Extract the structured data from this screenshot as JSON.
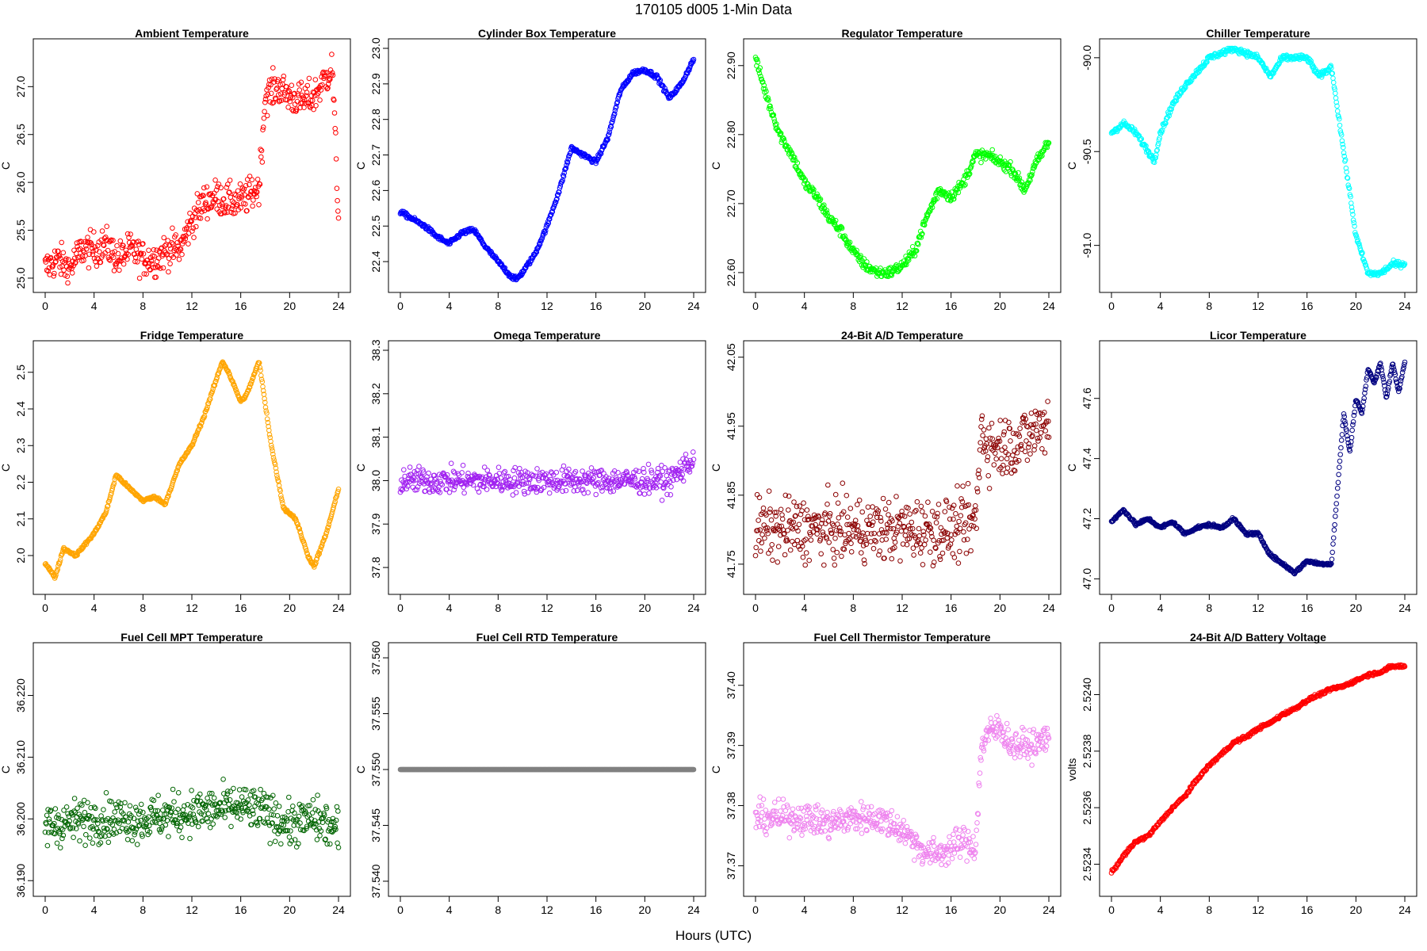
{
  "figure": {
    "title": "170105    d005    1-Min Data",
    "xlabel": "Hours (UTC)"
  },
  "chart_data": [
    {
      "type": "scatter",
      "title": "Ambient Temperature",
      "ylabel": "C",
      "xlim": [
        0,
        24
      ],
      "ylim": [
        24.95,
        27.4
      ],
      "xticks": [
        0,
        4,
        8,
        12,
        16,
        20,
        24
      ],
      "yticks": [
        25.0,
        25.5,
        26.0,
        26.5,
        27.0
      ],
      "ytick_labels": [
        "25.0",
        "25.5",
        "26.0",
        "26.5",
        "27.0"
      ],
      "color": "#ff0000",
      "x": [
        0,
        1,
        2,
        3,
        4,
        5,
        6,
        7,
        8,
        9,
        10,
        11,
        12,
        13,
        14,
        15,
        16,
        17,
        17.5,
        18,
        19,
        20,
        21,
        22,
        23,
        23.5,
        24
      ],
      "y": [
        25.1,
        25.2,
        25.1,
        25.3,
        25.3,
        25.35,
        25.2,
        25.3,
        25.2,
        25.2,
        25.3,
        25.3,
        25.6,
        25.8,
        25.85,
        25.8,
        25.8,
        25.9,
        25.95,
        26.9,
        27.0,
        26.9,
        26.85,
        26.9,
        27.1,
        27.2,
        25.6
      ],
      "noise": 0.18
    },
    {
      "type": "scatter",
      "title": "Cylinder Box Temperature",
      "ylabel": "C",
      "xlim": [
        0,
        24
      ],
      "ylim": [
        22.34,
        23.0
      ],
      "xticks": [
        0,
        4,
        8,
        12,
        16,
        20,
        24
      ],
      "yticks": [
        22.4,
        22.5,
        22.6,
        22.7,
        22.8,
        22.9,
        23.0
      ],
      "ytick_labels": [
        "22.4",
        "22.5",
        "22.6",
        "22.7",
        "22.8",
        "22.9",
        "23.0"
      ],
      "color": "#0000ff",
      "x": [
        0,
        1,
        2,
        3,
        4,
        5,
        6,
        7,
        8,
        9,
        9.5,
        10,
        11,
        12,
        13,
        14,
        15,
        16,
        17,
        18,
        19,
        20,
        21,
        22,
        23,
        24
      ],
      "y": [
        22.54,
        22.52,
        22.5,
        22.47,
        22.45,
        22.48,
        22.49,
        22.44,
        22.4,
        22.36,
        22.35,
        22.37,
        22.42,
        22.5,
        22.6,
        22.72,
        22.7,
        22.68,
        22.75,
        22.88,
        22.93,
        22.94,
        22.92,
        22.86,
        22.9,
        22.97
      ],
      "noise": 0.006
    },
    {
      "type": "scatter",
      "title": "Regulator Temperature",
      "ylabel": "C",
      "xlim": [
        0,
        24
      ],
      "ylim": [
        22.585,
        22.925
      ],
      "xticks": [
        0,
        4,
        8,
        12,
        16,
        20,
        24
      ],
      "yticks": [
        22.6,
        22.7,
        22.8,
        22.9
      ],
      "ytick_labels": [
        "22.60",
        "22.70",
        "22.80",
        "22.90"
      ],
      "color": "#00ff00",
      "x": [
        0,
        1,
        2,
        3,
        4,
        5,
        6,
        7,
        8,
        9,
        10,
        11,
        12,
        13,
        14,
        15,
        16,
        17,
        18,
        19,
        20,
        21,
        22,
        23,
        24
      ],
      "y": [
        22.91,
        22.85,
        22.8,
        22.77,
        22.73,
        22.71,
        22.68,
        22.66,
        22.63,
        22.61,
        22.6,
        22.6,
        22.61,
        22.63,
        22.68,
        22.72,
        22.71,
        22.73,
        22.77,
        22.77,
        22.76,
        22.75,
        22.72,
        22.76,
        22.79
      ],
      "noise": 0.008
    },
    {
      "type": "scatter",
      "title": "Chiller Temperature",
      "ylabel": "C",
      "xlim": [
        0,
        24
      ],
      "ylim": [
        -91.2,
        -89.95
      ],
      "xticks": [
        0,
        4,
        8,
        12,
        16,
        20,
        24
      ],
      "yticks": [
        -91.0,
        -90.5,
        -90.0
      ],
      "ytick_labels": [
        "-91.0",
        "-90.5",
        "-90.0"
      ],
      "color": "#00ffff",
      "x": [
        0,
        1,
        2,
        3,
        3.5,
        4,
        5,
        6,
        8,
        10,
        12,
        13,
        14,
        16,
        17,
        18,
        19,
        20,
        21,
        22,
        23,
        24
      ],
      "y": [
        -90.4,
        -90.35,
        -90.4,
        -90.5,
        -90.55,
        -90.4,
        -90.25,
        -90.15,
        -90.0,
        -89.95,
        -90.0,
        -90.1,
        -90.0,
        -90.0,
        -90.1,
        -90.05,
        -90.5,
        -90.95,
        -91.15,
        -91.15,
        -91.1,
        -91.1
      ],
      "noise": 0.015
    },
    {
      "type": "scatter",
      "title": "Fridge Temperature",
      "ylabel": "C",
      "xlim": [
        0,
        24
      ],
      "ylim": [
        1.92,
        2.56
      ],
      "xticks": [
        0,
        4,
        8,
        12,
        16,
        20,
        24
      ],
      "yticks": [
        2.0,
        2.1,
        2.2,
        2.3,
        2.4,
        2.5
      ],
      "ytick_labels": [
        "2.0",
        "2.1",
        "2.2",
        "2.3",
        "2.4",
        "2.5"
      ],
      "color": "#ffa500",
      "x": [
        0,
        0.8,
        1.5,
        2.5,
        4,
        5,
        5.8,
        7,
        8,
        9,
        9.8,
        11,
        12,
        13,
        14,
        14.5,
        15,
        16,
        16.5,
        17.5,
        18.5,
        19.5,
        20.5,
        21.5,
        22,
        23,
        24
      ],
      "y": [
        1.98,
        1.94,
        2.02,
        2.0,
        2.06,
        2.12,
        2.22,
        2.18,
        2.15,
        2.16,
        2.14,
        2.25,
        2.3,
        2.38,
        2.48,
        2.53,
        2.5,
        2.42,
        2.44,
        2.53,
        2.3,
        2.13,
        2.1,
        2.0,
        1.97,
        2.06,
        2.18
      ],
      "noise": 0.004
    },
    {
      "type": "scatter",
      "title": "Omega Temperature",
      "ylabel": "C",
      "xlim": [
        0,
        24
      ],
      "ylim": [
        37.76,
        38.3
      ],
      "xticks": [
        0,
        4,
        8,
        12,
        16,
        20,
        24
      ],
      "yticks": [
        37.8,
        37.9,
        38.0,
        38.1,
        38.2,
        38.3
      ],
      "ytick_labels": [
        "37.8",
        "37.9",
        "38.0",
        "38.1",
        "38.2",
        "38.3"
      ],
      "color": "#a020f0",
      "x": [
        0,
        2,
        4,
        6,
        8,
        10,
        12,
        14,
        16,
        17.5,
        18.5,
        20,
        22,
        24
      ],
      "y": [
        38.0,
        38.0,
        38.0,
        38.0,
        38.0,
        38.0,
        38.0,
        38.0,
        38.0,
        38.0,
        38.0,
        38.0,
        38.0,
        38.05
      ],
      "noise": 0.03
    },
    {
      "type": "scatter",
      "title": "24-Bit A/D Temperature",
      "ylabel": "C",
      "xlim": [
        0,
        24
      ],
      "ylim": [
        41.72,
        42.06
      ],
      "xticks": [
        0,
        4,
        8,
        12,
        16,
        20,
        24
      ],
      "yticks": [
        41.75,
        41.85,
        41.95,
        42.05
      ],
      "ytick_labels": [
        "41.75",
        "41.85",
        "41.95",
        "42.05"
      ],
      "color": "#8b0000",
      "x": [
        0,
        4,
        8,
        12,
        16,
        18,
        18.5,
        19,
        20,
        22,
        24
      ],
      "y": [
        41.8,
        41.8,
        41.8,
        41.8,
        41.8,
        41.81,
        41.95,
        41.92,
        41.92,
        41.93,
        41.96
      ],
      "noise": 0.045
    },
    {
      "type": "scatter",
      "title": "Licor Temperature",
      "ylabel": "C",
      "xlim": [
        0,
        24
      ],
      "ylim": [
        46.98,
        47.76
      ],
      "xticks": [
        0,
        4,
        8,
        12,
        16,
        20,
        24
      ],
      "yticks": [
        47.0,
        47.2,
        47.4,
        47.6
      ],
      "ytick_labels": [
        "47.0",
        "47.2",
        "47.4",
        "47.6"
      ],
      "color": "#000080",
      "x": [
        0,
        1,
        2,
        3,
        4,
        5,
        6,
        7,
        8,
        9,
        10,
        11,
        12,
        13,
        14,
        15,
        16,
        17,
        18,
        18.5,
        19,
        19.5,
        20,
        20.5,
        21,
        21.5,
        22,
        22.5,
        23,
        23.5,
        24
      ],
      "y": [
        47.19,
        47.23,
        47.18,
        47.2,
        47.17,
        47.19,
        47.15,
        47.17,
        47.18,
        47.17,
        47.2,
        47.15,
        47.15,
        47.08,
        47.05,
        47.02,
        47.06,
        47.05,
        47.05,
        47.3,
        47.55,
        47.42,
        47.6,
        47.55,
        47.7,
        47.65,
        47.72,
        47.6,
        47.72,
        47.62,
        47.72
      ],
      "noise": 0.005
    },
    {
      "type": "scatter",
      "title": "Fuel Cell MPT Temperature",
      "ylabel": "C",
      "xlim": [
        0,
        24
      ],
      "ylim": [
        36.189,
        36.227
      ],
      "xticks": [
        0,
        4,
        8,
        12,
        16,
        20,
        24
      ],
      "yticks": [
        36.19,
        36.2,
        36.21,
        36.22
      ],
      "ytick_labels": [
        "36.190",
        "36.200",
        "36.210",
        "36.220"
      ],
      "color": "#006400",
      "x": [
        0,
        4,
        8,
        12,
        16,
        18,
        20,
        22,
        24
      ],
      "y": [
        36.199,
        36.2,
        36.2,
        36.201,
        36.202,
        36.201,
        36.199,
        36.2,
        36.198
      ],
      "noise": 0.0035
    },
    {
      "type": "scatter",
      "title": "Fuel Cell RTD Temperature",
      "ylabel": "C",
      "xlim": [
        0,
        24
      ],
      "ylim": [
        37.5395,
        37.5605
      ],
      "xticks": [
        0,
        4,
        8,
        12,
        16,
        20,
        24
      ],
      "yticks": [
        37.54,
        37.545,
        37.55,
        37.555,
        37.56
      ],
      "ytick_labels": [
        "37.540",
        "37.545",
        "37.550",
        "37.555",
        "37.560"
      ],
      "color": "#808080",
      "x": [
        0,
        24
      ],
      "y": [
        37.55,
        37.55
      ],
      "noise": 0
    },
    {
      "type": "scatter",
      "title": "Fuel Cell Thermistor Temperature",
      "ylabel": "C",
      "xlim": [
        0,
        24
      ],
      "ylim": [
        37.3665,
        37.4055
      ],
      "xticks": [
        0,
        4,
        8,
        12,
        16,
        20,
        24
      ],
      "yticks": [
        37.37,
        37.38,
        37.39,
        37.4
      ],
      "ytick_labels": [
        "37.37",
        "37.38",
        "37.39",
        "37.40"
      ],
      "color": "#ee82ee",
      "x": [
        0,
        2,
        4,
        6,
        8,
        10,
        12,
        13,
        14,
        15,
        16,
        17,
        18,
        18.5,
        19,
        20,
        21,
        22,
        23,
        24
      ],
      "y": [
        37.378,
        37.378,
        37.378,
        37.377,
        37.378,
        37.378,
        37.376,
        37.374,
        37.372,
        37.372,
        37.373,
        37.374,
        37.373,
        37.39,
        37.392,
        37.393,
        37.39,
        37.39,
        37.39,
        37.392
      ],
      "noise": 0.0025
    },
    {
      "type": "scatter",
      "title": "24-Bit A/D Battery Voltage",
      "ylabel": "volts",
      "xlim": [
        0,
        24
      ],
      "ylim": [
        2.52332,
        2.52415
      ],
      "xticks": [
        0,
        4,
        8,
        12,
        16,
        20,
        24
      ],
      "yticks": [
        2.5234,
        2.5236,
        2.5238,
        2.524
      ],
      "ytick_labels": [
        "2.5234",
        "2.5236",
        "2.5238",
        "2.5240"
      ],
      "color": "#ff0000",
      "x": [
        0,
        1,
        2,
        3,
        4,
        5,
        6,
        7,
        8,
        9,
        10,
        11,
        12,
        13,
        14,
        15,
        16,
        17,
        18,
        19,
        20,
        21,
        22,
        23,
        24
      ],
      "y": [
        2.52337,
        2.52343,
        2.52348,
        2.5235,
        2.52355,
        2.5236,
        2.52364,
        2.5237,
        2.52375,
        2.52379,
        2.52383,
        2.52385,
        2.52388,
        2.5239,
        2.52393,
        2.52395,
        2.52398,
        2.524,
        2.52402,
        2.52403,
        2.52405,
        2.52407,
        2.52408,
        2.5241,
        2.5241
      ],
      "noise": 6e-06
    }
  ]
}
